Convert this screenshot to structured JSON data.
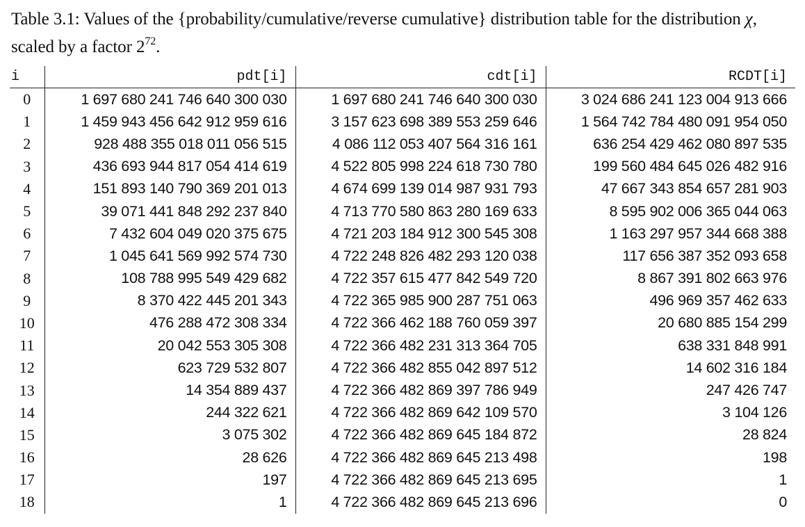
{
  "caption": {
    "label": "Table 3.1:",
    "text_before": " Values of the {probability/cumulative/reverse cumulative} distribution table for the distribution ",
    "chi_symbol": "χ",
    "text_after": ", scaled by a factor ",
    "base": "2",
    "exponent": "72",
    "end": "."
  },
  "table": {
    "headers": [
      "i",
      "pdt[i]",
      "cdt[i]",
      "RCDT[i]"
    ],
    "rows": [
      {
        "i": "0",
        "pdt": "1 697 680 241 746 640 300 030",
        "cdt": "1 697 680 241 746 640 300 030",
        "rcdt": "3 024 686 241 123 004 913 666"
      },
      {
        "i": "1",
        "pdt": "1 459 943 456 642 912 959 616",
        "cdt": "3 157 623 698 389 553 259 646",
        "rcdt": "1 564 742 784 480 091 954 050"
      },
      {
        "i": "2",
        "pdt": "928 488 355 018 011 056 515",
        "cdt": "4 086 112 053 407 564 316 161",
        "rcdt": "636 254 429 462 080 897 535"
      },
      {
        "i": "3",
        "pdt": "436 693 944 817 054 414 619",
        "cdt": "4 522 805 998 224 618 730 780",
        "rcdt": "199 560 484 645 026 482 916"
      },
      {
        "i": "4",
        "pdt": "151 893 140 790 369 201 013",
        "cdt": "4 674 699 139 014 987 931 793",
        "rcdt": "47 667 343 854 657 281 903"
      },
      {
        "i": "5",
        "pdt": "39 071 441 848 292 237 840",
        "cdt": "4 713 770 580 863 280 169 633",
        "rcdt": "8 595 902 006 365 044 063"
      },
      {
        "i": "6",
        "pdt": "7 432 604 049 020 375 675",
        "cdt": "4 721 203 184 912 300 545 308",
        "rcdt": "1 163 297 957 344 668 388"
      },
      {
        "i": "7",
        "pdt": "1 045 641 569 992 574 730",
        "cdt": "4 722 248 826 482 293 120 038",
        "rcdt": "117 656 387 352 093 658"
      },
      {
        "i": "8",
        "pdt": "108 788 995 549 429 682",
        "cdt": "4 722 357 615 477 842 549 720",
        "rcdt": "8 867 391 802 663 976"
      },
      {
        "i": "9",
        "pdt": "8 370 422 445 201 343",
        "cdt": "4 722 365 985 900 287 751 063",
        "rcdt": "496 969 357 462 633"
      },
      {
        "i": "10",
        "pdt": "476 288 472 308 334",
        "cdt": "4 722 366 462 188 760 059 397",
        "rcdt": "20 680 885 154 299"
      },
      {
        "i": "11",
        "pdt": "20 042 553 305 308",
        "cdt": "4 722 366 482 231 313 364 705",
        "rcdt": "638 331 848 991"
      },
      {
        "i": "12",
        "pdt": "623 729 532 807",
        "cdt": "4 722 366 482 855 042 897 512",
        "rcdt": "14 602 316 184"
      },
      {
        "i": "13",
        "pdt": "14 354 889 437",
        "cdt": "4 722 366 482 869 397 786 949",
        "rcdt": "247 426 747"
      },
      {
        "i": "14",
        "pdt": "244 322 621",
        "cdt": "4 722 366 482 869 642 109 570",
        "rcdt": "3 104 126"
      },
      {
        "i": "15",
        "pdt": "3 075 302",
        "cdt": "4 722 366 482 869 645 184 872",
        "rcdt": "28 824"
      },
      {
        "i": "16",
        "pdt": "28 626",
        "cdt": "4 722 366 482 869 645 213 498",
        "rcdt": "198"
      },
      {
        "i": "17",
        "pdt": "197",
        "cdt": "4 722 366 482 869 645 213 695",
        "rcdt": "1"
      },
      {
        "i": "18",
        "pdt": "1",
        "cdt": "4 722 366 482 869 645 213 696",
        "rcdt": "0"
      }
    ]
  }
}
